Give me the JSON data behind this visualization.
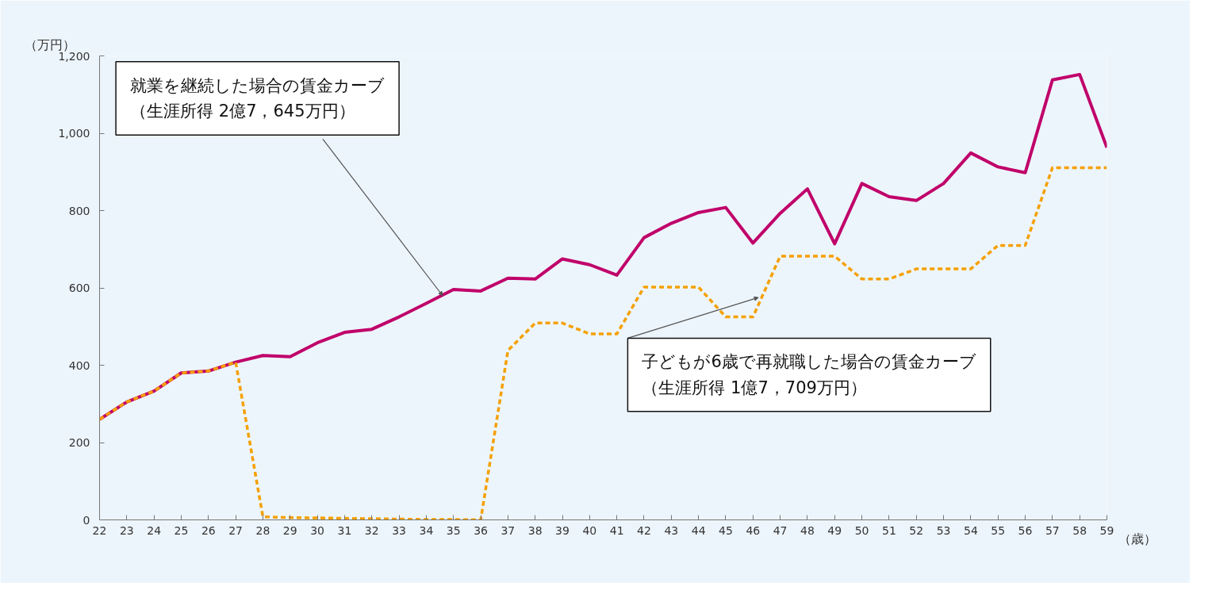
{
  "chart_data": {
    "type": "line",
    "xlabel": "（歳）",
    "ylabel": "（万円）",
    "x": [
      22,
      23,
      24,
      25,
      26,
      27,
      28,
      29,
      30,
      31,
      32,
      33,
      34,
      35,
      36,
      37,
      38,
      39,
      40,
      41,
      42,
      43,
      44,
      45,
      46,
      47,
      48,
      49,
      50,
      51,
      52,
      53,
      54,
      55,
      56,
      57,
      58,
      59
    ],
    "xlim": [
      22,
      59
    ],
    "xticks": [
      22,
      23,
      24,
      25,
      26,
      27,
      28,
      29,
      30,
      31,
      32,
      33,
      34,
      35,
      36,
      37,
      38,
      39,
      40,
      41,
      42,
      43,
      44,
      45,
      46,
      47,
      48,
      49,
      50,
      51,
      52,
      53,
      54,
      55,
      56,
      57,
      58,
      59
    ],
    "ylim": [
      0,
      1200
    ],
    "yticks": [
      0,
      {
        "value": 200,
        "label": "200"
      },
      {
        "value": 400,
        "label": "400"
      },
      {
        "value": 600,
        "label": "600"
      },
      {
        "value": 800,
        "label": "800"
      },
      {
        "value": 1000,
        "label": "1,000"
      },
      {
        "value": 1200,
        "label": "1,200"
      }
    ],
    "grid": false,
    "marker": "none",
    "series": [
      {
        "color": "#c0006a",
        "line_style": "solid",
        "values": [
          260,
          305,
          333,
          380,
          385,
          408,
          425,
          422,
          458,
          485,
          493,
          525,
          560,
          596,
          592,
          625,
          623,
          675,
          660,
          633,
          730,
          767,
          795,
          808,
          716,
          793,
          856,
          714,
          870,
          836,
          826,
          870,
          949,
          913,
          898,
          1138,
          1152,
          963
        ]
      },
      {
        "color": "#f5a000",
        "line_style": "dashed",
        "values": [
          260,
          305,
          333,
          380,
          385,
          408,
          8,
          6,
          5,
          4,
          3,
          2,
          1,
          1,
          0,
          438,
          509,
          509,
          481,
          481,
          602,
          602,
          602,
          525,
          525,
          682,
          682,
          682,
          623,
          623,
          649,
          649,
          649,
          710,
          710,
          911,
          911,
          911
        ]
      }
    ],
    "annotations": [
      {
        "text": "就業を継続した場合の賃金カーブ（生涯所得 2億7，645万円）",
        "x": 34.6,
        "y": 580
      },
      {
        "text": "子どもが6歳で再就職した場合の賃金カーブ（生涯所得 1億7，709万円）",
        "x": 46.2,
        "y": 575
      }
    ]
  }
}
